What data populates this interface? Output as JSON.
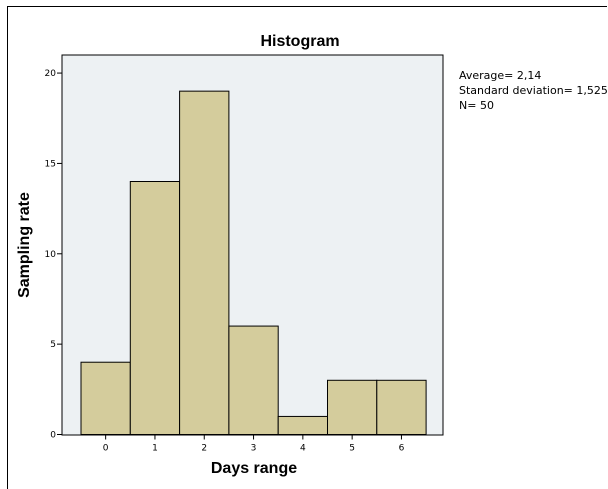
{
  "chart_data": {
    "type": "bar",
    "title": "Histogram",
    "xlabel": "Days range",
    "ylabel": "Sampling rate",
    "categories": [
      "0",
      "1",
      "2",
      "3",
      "4",
      "5",
      "6"
    ],
    "values": [
      4,
      14,
      19,
      6,
      1,
      3,
      3
    ],
    "ylim": [
      0,
      21
    ],
    "yticks": [
      "0",
      "5",
      "10",
      "15",
      "20"
    ],
    "grid": false,
    "legend": "none",
    "colors": {
      "bar_fill": "#d4cc9c",
      "bar_stroke": "#000000",
      "plot_bg": "#edf1f3"
    },
    "stats": [
      "Average= 2,14",
      "Standard deviation= 1,525",
      "N= 50"
    ]
  }
}
